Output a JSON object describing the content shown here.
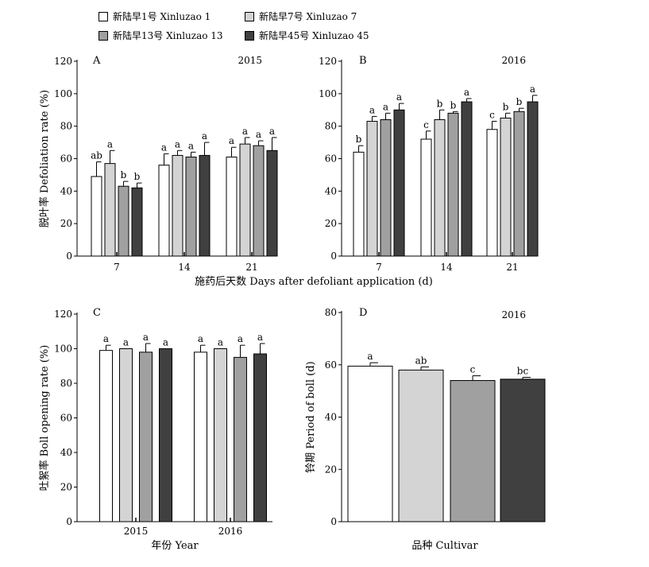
{
  "legend": [
    {
      "label": "新陆早1号 Xinluzao 1",
      "color": "#ffffff"
    },
    {
      "label": "新陆早7号 Xinluzao 7",
      "color": "#d4d4d4"
    },
    {
      "label": "新陆早13号 Xinluzao 13",
      "color": "#a0a0a0"
    },
    {
      "label": "新陆早45号 Xinluzao 45",
      "color": "#404040"
    }
  ],
  "shared_xlabel_top": "施药后天数 Days after defoliant application (d)",
  "chart_data": [
    {
      "panel": "A",
      "type": "bar",
      "annotation": "2015",
      "ylabel": "脱叶率 Defoliation rate (%)",
      "ylim": [
        0,
        120
      ],
      "yticks": [
        0,
        20,
        40,
        60,
        80,
        100,
        120
      ],
      "categories": [
        "7",
        "14",
        "21"
      ],
      "series": [
        {
          "name": "新陆早1号 Xinluzao 1",
          "color": "#ffffff",
          "values": [
            49,
            56,
            61
          ],
          "errors": [
            9,
            7,
            6
          ],
          "letters": [
            "ab",
            "a",
            "a"
          ]
        },
        {
          "name": "新陆早7号 Xinluzao 7",
          "color": "#d4d4d4",
          "values": [
            57,
            62,
            69
          ],
          "errors": [
            8,
            3,
            4
          ],
          "letters": [
            "a",
            "a",
            "a"
          ]
        },
        {
          "name": "新陆早13号 Xinluzao 13",
          "color": "#a0a0a0",
          "values": [
            43,
            61,
            68
          ],
          "errors": [
            3,
            3,
            3
          ],
          "letters": [
            "b",
            "a",
            "a"
          ]
        },
        {
          "name": "新陆早45号 Xinluzao 45",
          "color": "#404040",
          "values": [
            42,
            62,
            65
          ],
          "errors": [
            3,
            8,
            8
          ],
          "letters": [
            "b",
            "a",
            "a"
          ]
        }
      ]
    },
    {
      "panel": "B",
      "type": "bar",
      "annotation": "2016",
      "ylabel": "",
      "ylim": [
        0,
        120
      ],
      "yticks": [
        0,
        20,
        40,
        60,
        80,
        100,
        120
      ],
      "categories": [
        "7",
        "14",
        "21"
      ],
      "series": [
        {
          "name": "新陆早1号 Xinluzao 1",
          "color": "#ffffff",
          "values": [
            64,
            72,
            78
          ],
          "errors": [
            4,
            5,
            5
          ],
          "letters": [
            "b",
            "c",
            "c"
          ]
        },
        {
          "name": "新陆早7号 Xinluzao 7",
          "color": "#d4d4d4",
          "values": [
            83,
            84,
            85
          ],
          "errors": [
            3,
            6,
            3
          ],
          "letters": [
            "a",
            "b",
            "b"
          ]
        },
        {
          "name": "新陆早13号 Xinluzao 13",
          "color": "#a0a0a0",
          "values": [
            84,
            88,
            89
          ],
          "errors": [
            4,
            1,
            2
          ],
          "letters": [
            "a",
            "b",
            "b"
          ]
        },
        {
          "name": "新陆早45号 Xinluzao 45",
          "color": "#404040",
          "values": [
            90,
            95,
            95
          ],
          "errors": [
            4,
            2,
            4
          ],
          "letters": [
            "a",
            "a",
            "a"
          ]
        }
      ]
    },
    {
      "panel": "C",
      "type": "bar",
      "annotation": "",
      "ylabel": "吐絮率 Boll opening rate (%)",
      "xlabel": "年份 Year",
      "ylim": [
        0,
        120
      ],
      "yticks": [
        0,
        20,
        40,
        60,
        80,
        100,
        120
      ],
      "categories": [
        "2015",
        "2016"
      ],
      "series": [
        {
          "name": "新陆早1号 Xinluzao 1",
          "color": "#ffffff",
          "values": [
            99,
            98
          ],
          "errors": [
            3,
            4
          ],
          "letters": [
            "a",
            "a"
          ]
        },
        {
          "name": "新陆早7号 Xinluzao 7",
          "color": "#d4d4d4",
          "values": [
            100,
            100
          ],
          "errors": [
            0,
            0
          ],
          "letters": [
            "a",
            "a"
          ]
        },
        {
          "name": "新陆早13号 Xinluzao 13",
          "color": "#a0a0a0",
          "values": [
            98,
            95
          ],
          "errors": [
            5,
            7
          ],
          "letters": [
            "a",
            "a"
          ]
        },
        {
          "name": "新陆早45号 Xinluzao 45",
          "color": "#404040",
          "values": [
            100,
            97
          ],
          "errors": [
            0,
            6
          ],
          "letters": [
            "a",
            "a"
          ]
        }
      ]
    },
    {
      "panel": "D",
      "type": "bar",
      "annotation": "2016",
      "ylabel": "铃期 Period of boll (d)",
      "xlabel": "品种 Cultivar",
      "ylim": [
        0,
        80
      ],
      "yticks": [
        0,
        20,
        40,
        60,
        80
      ],
      "categories": [
        "",
        "",
        "",
        ""
      ],
      "series": [
        {
          "name": "",
          "color": "",
          "values": [
            59.5,
            58,
            54,
            54.5
          ],
          "errors": [
            1.3,
            1.2,
            1.8,
            0.7
          ],
          "letters": [
            "a",
            "ab",
            "c",
            "bc"
          ],
          "colors": [
            "#ffffff",
            "#d4d4d4",
            "#a0a0a0",
            "#404040"
          ]
        }
      ]
    }
  ]
}
